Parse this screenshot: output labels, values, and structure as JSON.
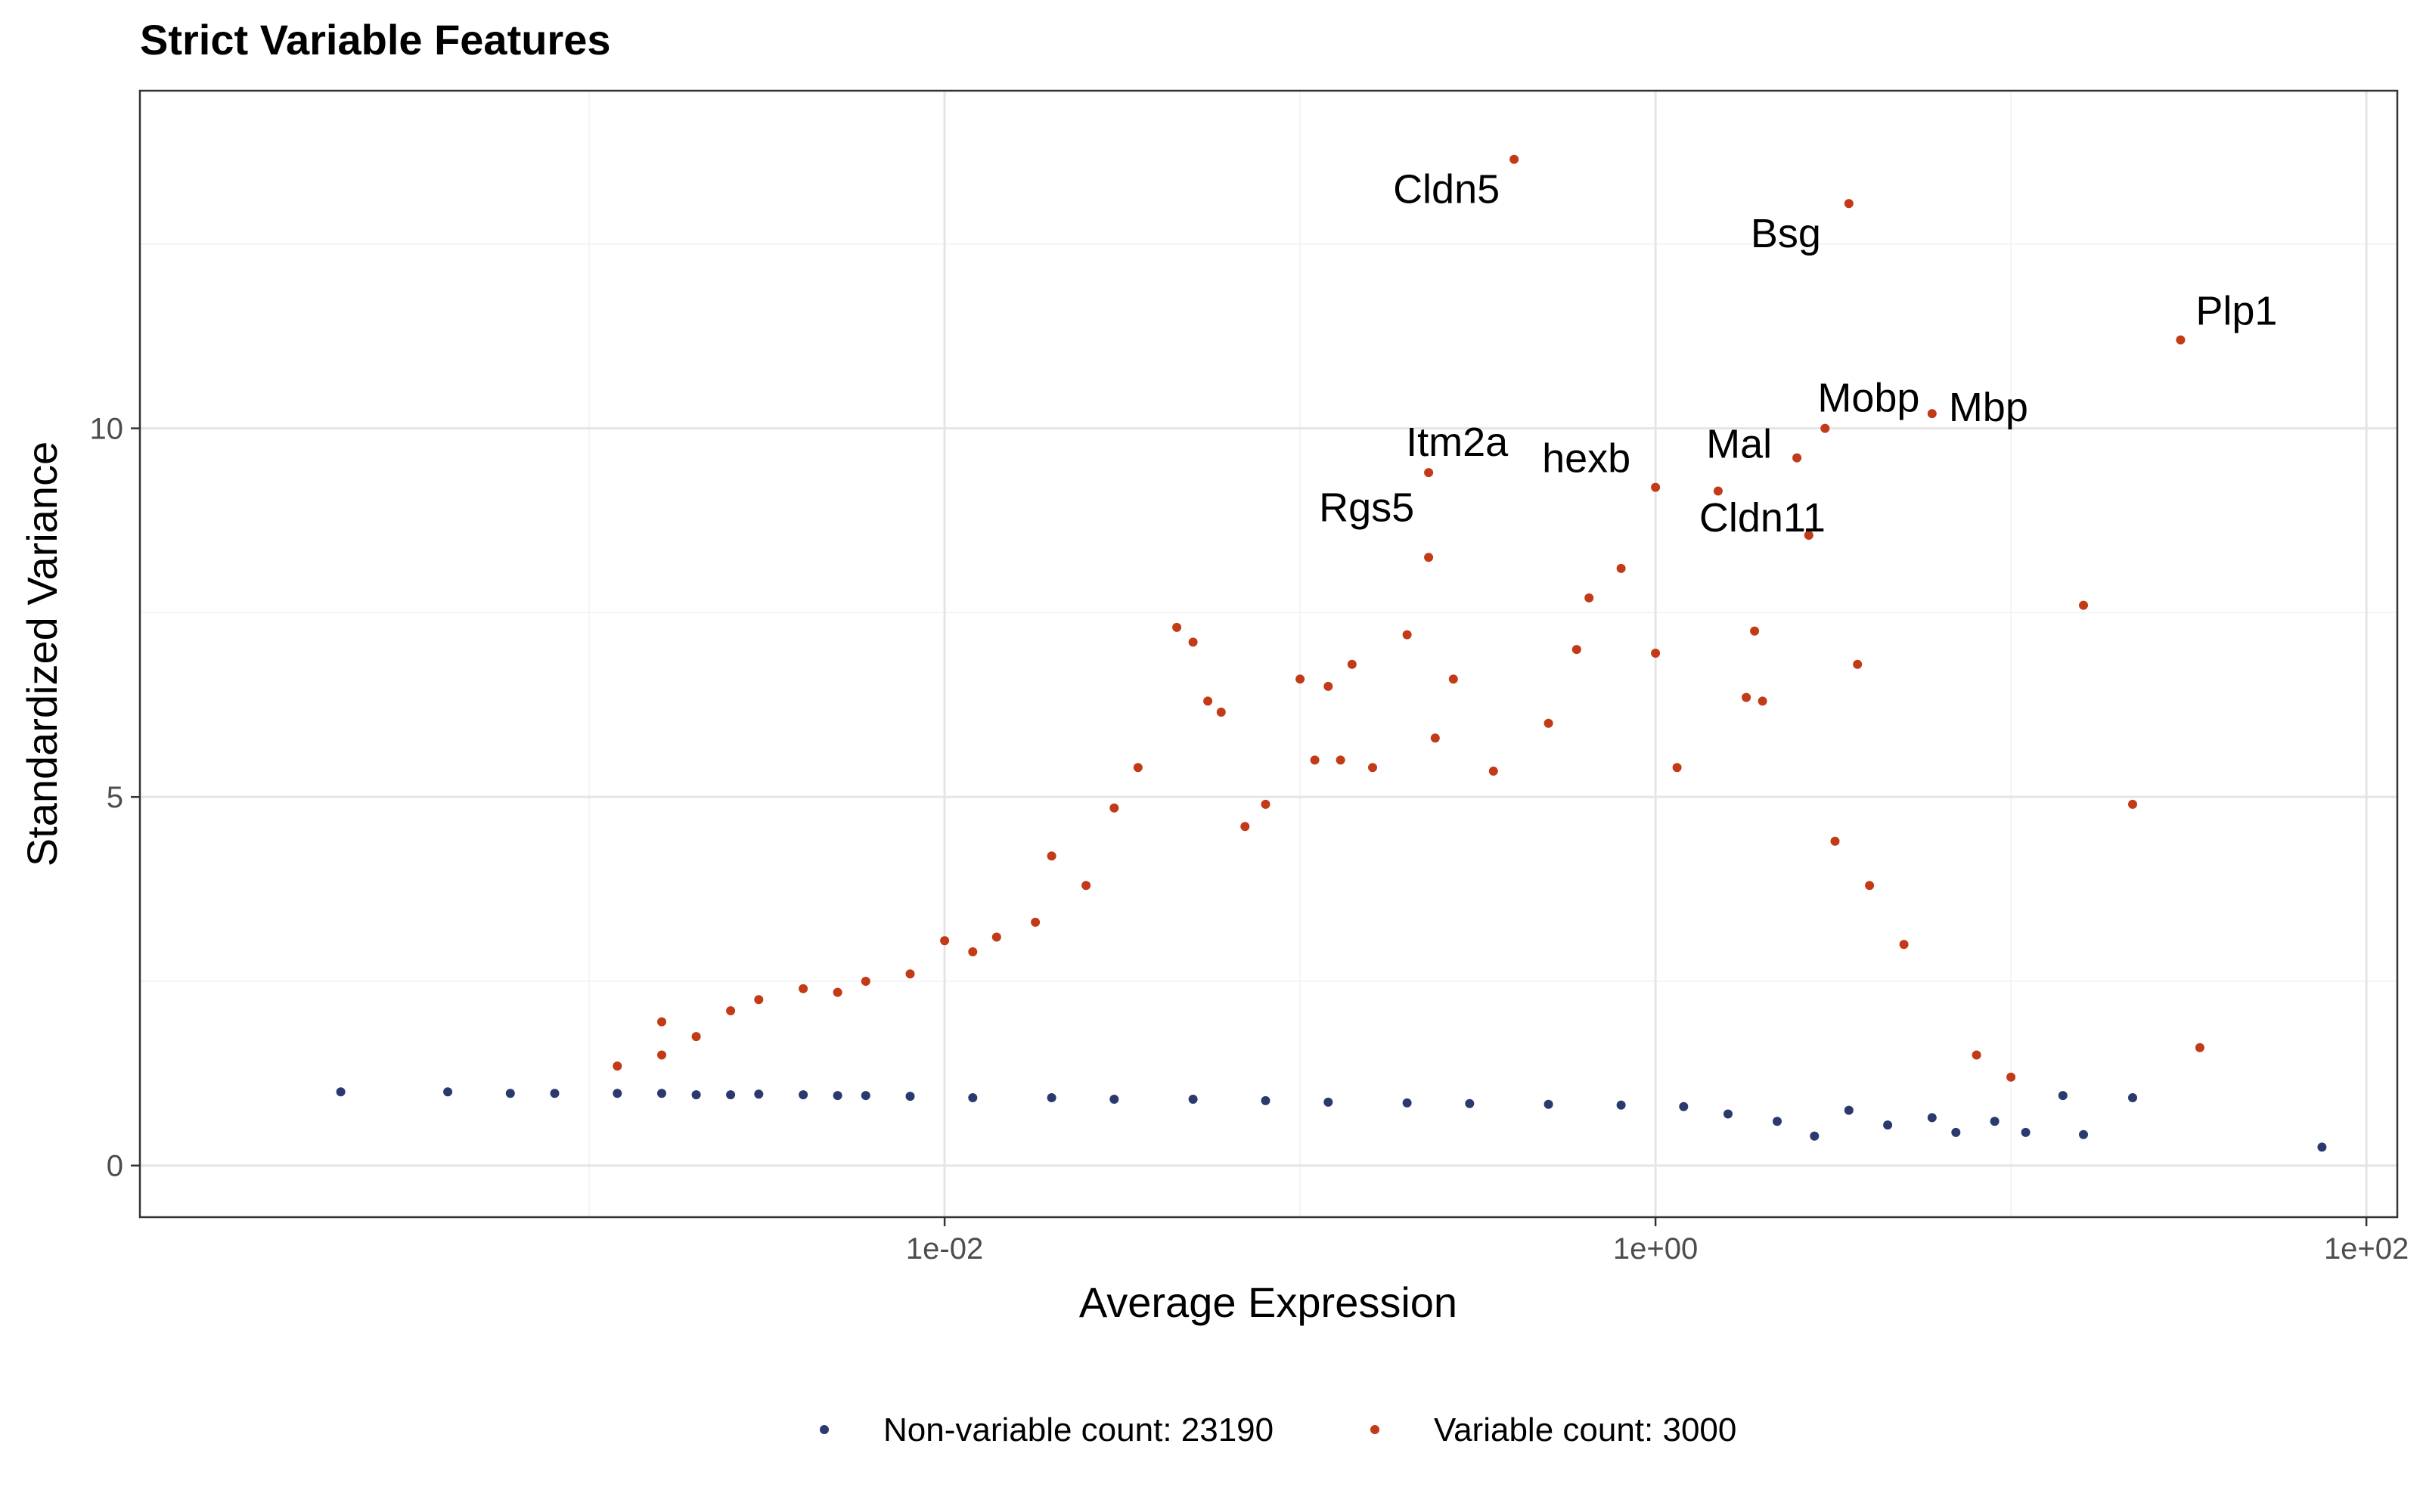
{
  "chart_data": {
    "type": "scatter",
    "title": "Strict Variable Features",
    "xlabel": "Average Expression",
    "ylabel": "Standardized Variance",
    "x_scale": "log10",
    "xlim": [
      0.0001,
      100
    ],
    "ylim": [
      0,
      14
    ],
    "x_ticks": [
      {
        "value": 0.01,
        "label": "1e-02"
      },
      {
        "value": 1,
        "label": "1e+00"
      },
      {
        "value": 100,
        "label": "1e+02"
      }
    ],
    "y_ticks": [
      {
        "value": 0,
        "label": "0"
      },
      {
        "value": 5,
        "label": "5"
      },
      {
        "value": 10,
        "label": "10"
      }
    ],
    "grid": true,
    "legend_position": "bottom",
    "colors": {
      "non_variable": "#2b3a6e",
      "variable": "#c23a16"
    },
    "legend": [
      {
        "key": "non_variable",
        "label": "Non-variable count: 23190"
      },
      {
        "key": "variable",
        "label": "Variable count: 3000"
      }
    ],
    "series": [
      {
        "key": "non_variable",
        "points": [
          [
            0.0002,
            1.0
          ],
          [
            0.0004,
            1.0
          ],
          [
            0.0006,
            0.98
          ],
          [
            0.0008,
            0.98
          ],
          [
            0.0012,
            0.98
          ],
          [
            0.0016,
            0.98
          ],
          [
            0.002,
            0.96
          ],
          [
            0.0025,
            0.96
          ],
          [
            0.003,
            0.97
          ],
          [
            0.004,
            0.96
          ],
          [
            0.005,
            0.95
          ],
          [
            0.006,
            0.95
          ],
          [
            0.008,
            0.94
          ],
          [
            0.012,
            0.92
          ],
          [
            0.02,
            0.92
          ],
          [
            0.03,
            0.9
          ],
          [
            0.05,
            0.9
          ],
          [
            0.08,
            0.88
          ],
          [
            0.12,
            0.86
          ],
          [
            0.2,
            0.85
          ],
          [
            0.3,
            0.84
          ],
          [
            0.5,
            0.83
          ],
          [
            0.8,
            0.82
          ],
          [
            1.2,
            0.8
          ],
          [
            1.6,
            0.7
          ],
          [
            2.2,
            0.6
          ],
          [
            2.8,
            0.4
          ],
          [
            3.5,
            0.75
          ],
          [
            4.5,
            0.55
          ],
          [
            6,
            0.65
          ],
          [
            7,
            0.45
          ],
          [
            9,
            0.6
          ],
          [
            11,
            0.45
          ],
          [
            14,
            0.95
          ],
          [
            16,
            0.42
          ],
          [
            22,
            0.92
          ],
          [
            75,
            0.25
          ]
        ]
      },
      {
        "key": "variable",
        "points": [
          [
            0.0012,
            1.35
          ],
          [
            0.0016,
            1.5
          ],
          [
            0.0016,
            1.95
          ],
          [
            0.002,
            1.75
          ],
          [
            0.0025,
            2.1
          ],
          [
            0.003,
            2.25
          ],
          [
            0.004,
            2.4
          ],
          [
            0.005,
            2.35
          ],
          [
            0.006,
            2.5
          ],
          [
            0.008,
            2.6
          ],
          [
            0.01,
            3.05
          ],
          [
            0.012,
            2.9
          ],
          [
            0.014,
            3.1
          ],
          [
            0.018,
            3.3
          ],
          [
            0.02,
            4.2
          ],
          [
            0.025,
            3.8
          ],
          [
            0.03,
            4.85
          ],
          [
            0.035,
            5.4
          ],
          [
            0.045,
            7.3
          ],
          [
            0.05,
            7.1
          ],
          [
            0.055,
            6.3
          ],
          [
            0.06,
            6.15
          ],
          [
            0.07,
            4.6
          ],
          [
            0.08,
            4.9
          ],
          [
            0.1,
            6.6
          ],
          [
            0.11,
            5.5
          ],
          [
            0.12,
            6.5
          ],
          [
            0.13,
            5.5
          ],
          [
            0.14,
            6.8
          ],
          [
            0.16,
            5.4
          ],
          [
            0.2,
            7.2
          ],
          [
            0.23,
            8.25
          ],
          [
            0.23,
            9.4
          ],
          [
            0.24,
            5.8
          ],
          [
            0.27,
            6.6
          ],
          [
            0.35,
            5.35
          ],
          [
            0.4,
            13.65
          ],
          [
            0.5,
            6.0
          ],
          [
            0.6,
            7.0
          ],
          [
            0.65,
            7.7
          ],
          [
            0.8,
            8.1
          ],
          [
            1.0,
            6.95
          ],
          [
            1.0,
            9.2
          ],
          [
            1.15,
            5.4
          ],
          [
            1.5,
            9.15
          ],
          [
            1.8,
            6.35
          ],
          [
            1.9,
            7.25
          ],
          [
            2.0,
            6.3
          ],
          [
            2.5,
            9.6
          ],
          [
            2.7,
            8.55
          ],
          [
            3.0,
            10.0
          ],
          [
            3.2,
            4.4
          ],
          [
            3.5,
            13.05
          ],
          [
            3.7,
            6.8
          ],
          [
            4.0,
            3.8
          ],
          [
            5.0,
            3.0
          ],
          [
            6.0,
            10.2
          ],
          [
            8.0,
            1.5
          ],
          [
            10,
            1.2
          ],
          [
            16,
            7.6
          ],
          [
            22,
            4.9
          ],
          [
            30,
            11.2
          ],
          [
            34,
            1.6
          ]
        ]
      }
    ],
    "annotations": [
      {
        "text": "Cldn5",
        "x": 0.4,
        "y": 13.65
      },
      {
        "text": "Bsg",
        "x": 3.5,
        "y": 13.05
      },
      {
        "text": "Plp1",
        "x": 30,
        "y": 11.2
      },
      {
        "text": "Mobp",
        "x": 3.0,
        "y": 10.0
      },
      {
        "text": "Mbp",
        "x": 6.0,
        "y": 10.2
      },
      {
        "text": "Itm2a",
        "x": 0.23,
        "y": 9.4
      },
      {
        "text": "hexb",
        "x": 1.0,
        "y": 9.2
      },
      {
        "text": "Mal",
        "x": 2.5,
        "y": 9.6
      },
      {
        "text": "Rgs5",
        "x": 0.23,
        "y": 8.25
      },
      {
        "text": "Cldn11",
        "x": 2.7,
        "y": 8.55
      }
    ]
  }
}
